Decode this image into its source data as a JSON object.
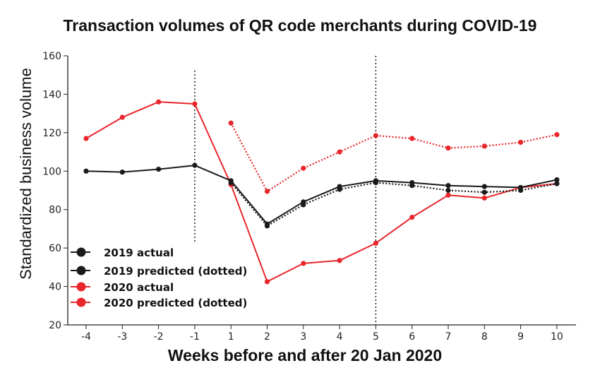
{
  "chart_data": {
    "type": "line",
    "title": "Transaction volumes of QR code merchants during COVID-19",
    "xlabel": "Weeks before and after 20 Jan 2020",
    "ylabel": "Standardized business volume",
    "ylim": [
      20,
      160
    ],
    "yticks": [
      "20",
      "40",
      "60",
      "80",
      "100",
      "120",
      "140",
      "160"
    ],
    "categories": [
      "-4",
      "-3",
      "-2",
      "-1",
      "1",
      "2",
      "3",
      "4",
      "5",
      "6",
      "7",
      "8",
      "9",
      "10"
    ],
    "vlines_at": [
      "-1",
      "5"
    ],
    "grid": false,
    "legend_position": "bottom-left",
    "series": [
      {
        "name": "2019 actual",
        "color": "#1a1a1a",
        "style": "solid",
        "x": [
          "-4",
          "-3",
          "-2",
          "-1",
          "1",
          "2",
          "3",
          "4",
          "5",
          "6",
          "7",
          "8",
          "9",
          "10"
        ],
        "values": [
          100,
          99.5,
          101,
          103,
          95,
          72.5,
          84,
          92,
          95,
          94,
          92.5,
          92,
          91.5,
          95.5
        ]
      },
      {
        "name": "2019 predicted (dotted)",
        "color": "#1a1a1a",
        "style": "dotted",
        "x": [
          "1",
          "2",
          "3",
          "4",
          "5",
          "6",
          "7",
          "8",
          "9",
          "10"
        ],
        "values": [
          94,
          71.5,
          82.5,
          90.5,
          94,
          92.5,
          90,
          89,
          90,
          93.5
        ]
      },
      {
        "name": "2020 actual",
        "color": "#e8262b",
        "style": "solid",
        "x": [
          "-4",
          "-3",
          "-2",
          "-1",
          "1",
          "2",
          "3",
          "4",
          "5",
          "6",
          "7",
          "8",
          "9",
          "10"
        ],
        "values": [
          117,
          128,
          136,
          135,
          93,
          42.5,
          52,
          53.5,
          62.5,
          76,
          87.5,
          86,
          91.5,
          93.5
        ]
      },
      {
        "name": "2020 predicted (dotted)",
        "color": "#e8262b",
        "style": "dotted",
        "x": [
          "1",
          "2",
          "3",
          "4",
          "5",
          "6",
          "7",
          "8",
          "9",
          "10"
        ],
        "values": [
          125,
          89.5,
          101.5,
          110,
          118.5,
          117,
          112,
          113,
          115,
          119
        ]
      }
    ]
  }
}
